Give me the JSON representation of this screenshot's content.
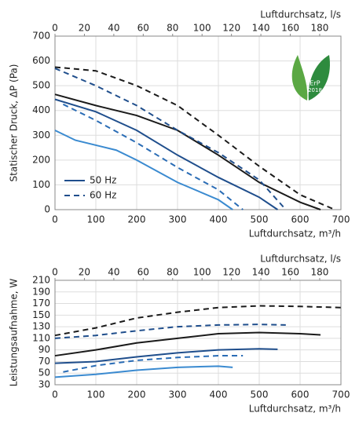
{
  "chart_data": [
    {
      "type": "line",
      "ylabel": "Statischer Druck, ΔP (Pa)",
      "xlabel": "Luftdurchsatz, m³/h",
      "x2label": "Luftdurchsatz, l/s",
      "xlim": [
        0,
        700
      ],
      "xticks": [
        0,
        100,
        200,
        300,
        400,
        500,
        600,
        700
      ],
      "x2lim": [
        0,
        194.44
      ],
      "x2ticks": [
        0,
        20,
        40,
        60,
        80,
        100,
        120,
        140,
        160,
        180
      ],
      "ylim": [
        0,
        700
      ],
      "yticks": [
        0,
        100,
        200,
        300,
        400,
        500,
        600,
        700
      ],
      "grid": true,
      "legend": [
        {
          "name": "50 Hz",
          "dashed": false,
          "color": "#1f4e8c"
        },
        {
          "name": "60 Hz",
          "dashed": true,
          "color": "#1f4e8c"
        }
      ],
      "badge": {
        "line1": "ErP",
        "line2": "2018"
      },
      "series": [
        {
          "color": "#1a1a1a",
          "dashed": true,
          "x": [
            0,
            100,
            200,
            300,
            400,
            500,
            600,
            685
          ],
          "values": [
            575,
            560,
            500,
            420,
            300,
            175,
            60,
            0
          ]
        },
        {
          "color": "#1a1a1a",
          "dashed": false,
          "x": [
            0,
            100,
            200,
            300,
            400,
            500,
            600,
            650
          ],
          "values": [
            465,
            420,
            380,
            320,
            220,
            110,
            30,
            0
          ]
        },
        {
          "color": "#1f4e8c",
          "dashed": true,
          "x": [
            0,
            100,
            200,
            300,
            400,
            500,
            565
          ],
          "values": [
            570,
            500,
            420,
            320,
            230,
            120,
            0
          ]
        },
        {
          "color": "#1f4e8c",
          "dashed": false,
          "x": [
            0,
            100,
            200,
            300,
            400,
            500,
            545
          ],
          "values": [
            445,
            395,
            320,
            220,
            130,
            50,
            0
          ]
        },
        {
          "color": "#2a6cb5",
          "dashed": true,
          "x": [
            20,
            100,
            200,
            300,
            400,
            460
          ],
          "values": [
            425,
            360,
            270,
            170,
            80,
            0
          ]
        },
        {
          "color": "#3a8ad0",
          "dashed": false,
          "x": [
            0,
            50,
            150,
            200,
            300,
            400,
            435
          ],
          "values": [
            320,
            280,
            240,
            200,
            110,
            40,
            0
          ]
        }
      ]
    },
    {
      "type": "line",
      "ylabel": "Leistungsaufnahme, W",
      "xlabel": "Luftdurchsatz, m³/h",
      "x2label": "Luftdurchsatz, l/s",
      "xlim": [
        0,
        700
      ],
      "xticks": [
        0,
        100,
        200,
        300,
        400,
        500,
        600,
        700
      ],
      "x2lim": [
        0,
        194.44
      ],
      "x2ticks": [
        0,
        20,
        40,
        60,
        80,
        100,
        120,
        140,
        160,
        180
      ],
      "ylim": [
        30,
        210
      ],
      "yticks": [
        30,
        50,
        70,
        90,
        110,
        130,
        150,
        170,
        190,
        210
      ],
      "grid": true,
      "series": [
        {
          "color": "#1a1a1a",
          "dashed": true,
          "x": [
            0,
            100,
            200,
            300,
            400,
            500,
            600,
            700
          ],
          "values": [
            115,
            128,
            145,
            155,
            163,
            166,
            165,
            163
          ]
        },
        {
          "color": "#1a1a1a",
          "dashed": false,
          "x": [
            0,
            100,
            200,
            300,
            400,
            500,
            600,
            650
          ],
          "values": [
            80,
            90,
            102,
            110,
            118,
            120,
            118,
            116
          ]
        },
        {
          "color": "#1f4e8c",
          "dashed": true,
          "x": [
            0,
            100,
            200,
            300,
            400,
            500,
            565
          ],
          "values": [
            110,
            115,
            123,
            130,
            133,
            134,
            133
          ]
        },
        {
          "color": "#1f4e8c",
          "dashed": false,
          "x": [
            0,
            100,
            200,
            300,
            400,
            500,
            545
          ],
          "values": [
            67,
            70,
            78,
            85,
            90,
            92,
            91
          ]
        },
        {
          "color": "#2a6cb5",
          "dashed": true,
          "x": [
            20,
            100,
            200,
            300,
            400,
            460
          ],
          "values": [
            52,
            63,
            72,
            77,
            80,
            80
          ]
        },
        {
          "color": "#3a8ad0",
          "dashed": false,
          "x": [
            0,
            100,
            200,
            300,
            400,
            435
          ],
          "values": [
            43,
            48,
            55,
            60,
            62,
            60
          ]
        }
      ]
    }
  ]
}
